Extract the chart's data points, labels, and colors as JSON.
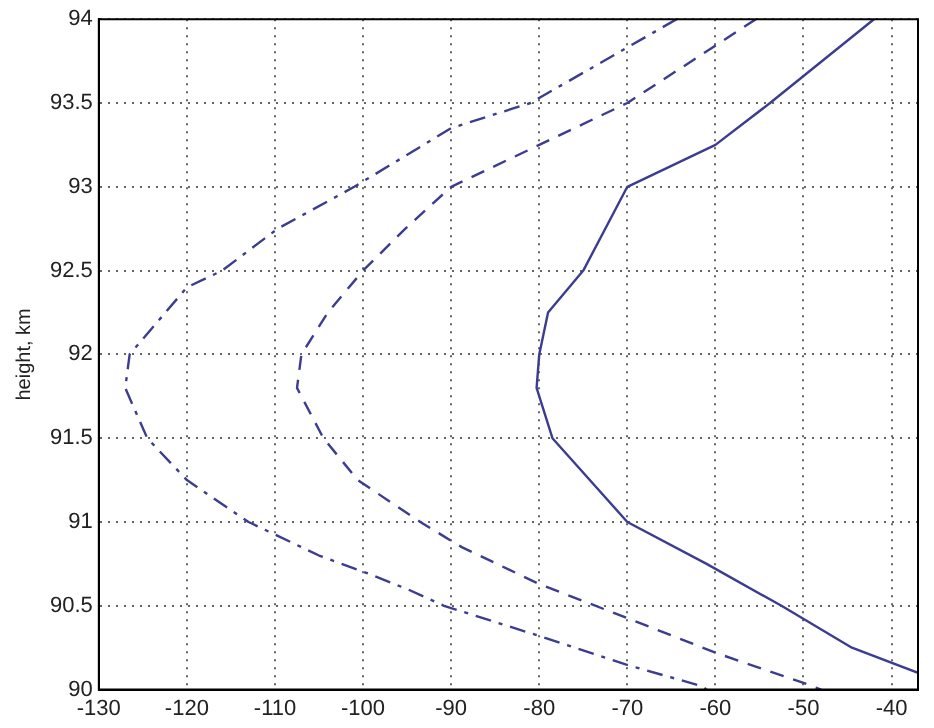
{
  "chart_data": {
    "type": "line",
    "ylabel": "height, km",
    "xlim": [
      -130,
      -37
    ],
    "ylim": [
      90,
      94
    ],
    "xticks": [
      -130,
      -120,
      -110,
      -100,
      -90,
      -80,
      -70,
      -60,
      -50,
      -40
    ],
    "yticks": [
      90,
      90.5,
      91,
      91.5,
      92,
      92.5,
      93,
      93.5,
      94
    ],
    "grid": true,
    "legend": false,
    "marker": "none",
    "series": [
      {
        "color": "#3c3c90",
        "line_style": "solid",
        "x": [
          -42,
          -53.8,
          -60,
          -70,
          -75,
          -79,
          -80,
          -80.3,
          -78.5,
          -70,
          -61,
          -52.5,
          -44.5,
          -37
        ],
        "values": [
          94,
          93.5,
          93.25,
          93,
          92.5,
          92.25,
          92,
          91.8,
          91.5,
          91,
          90.75,
          90.5,
          90.25,
          90.1
        ]
      },
      {
        "color": "#3c3c90",
        "line_style": "dashed",
        "x": [
          -55.4,
          -70,
          -80,
          -90,
          -95.2,
          -100,
          -104,
          -107,
          -107.5,
          -104.5,
          -100.6,
          -93.5,
          -88.8,
          -80,
          -68.7,
          -60,
          -50,
          -48
        ],
        "values": [
          94,
          93.5,
          93.25,
          93,
          92.75,
          92.5,
          92.25,
          92,
          91.8,
          91.5,
          91.25,
          91,
          90.85,
          90.63,
          90.4,
          90.22,
          90.04,
          90
        ]
      },
      {
        "color": "#3c3c90",
        "line_style": "dashdot",
        "x": [
          -64.4,
          -81,
          -90,
          -101,
          -109.7,
          -116,
          -120,
          -126.5,
          -127,
          -124.5,
          -120,
          -113,
          -105,
          -99.8,
          -95,
          -90.8,
          -80,
          -70.2,
          -61.5,
          -61
        ],
        "values": [
          94,
          93.5,
          93.35,
          93,
          92.75,
          92.5,
          92.4,
          92,
          91.8,
          91.5,
          91.25,
          91,
          90.8,
          90.7,
          90.6,
          90.5,
          90.32,
          90.15,
          90.02,
          90
        ]
      }
    ]
  }
}
